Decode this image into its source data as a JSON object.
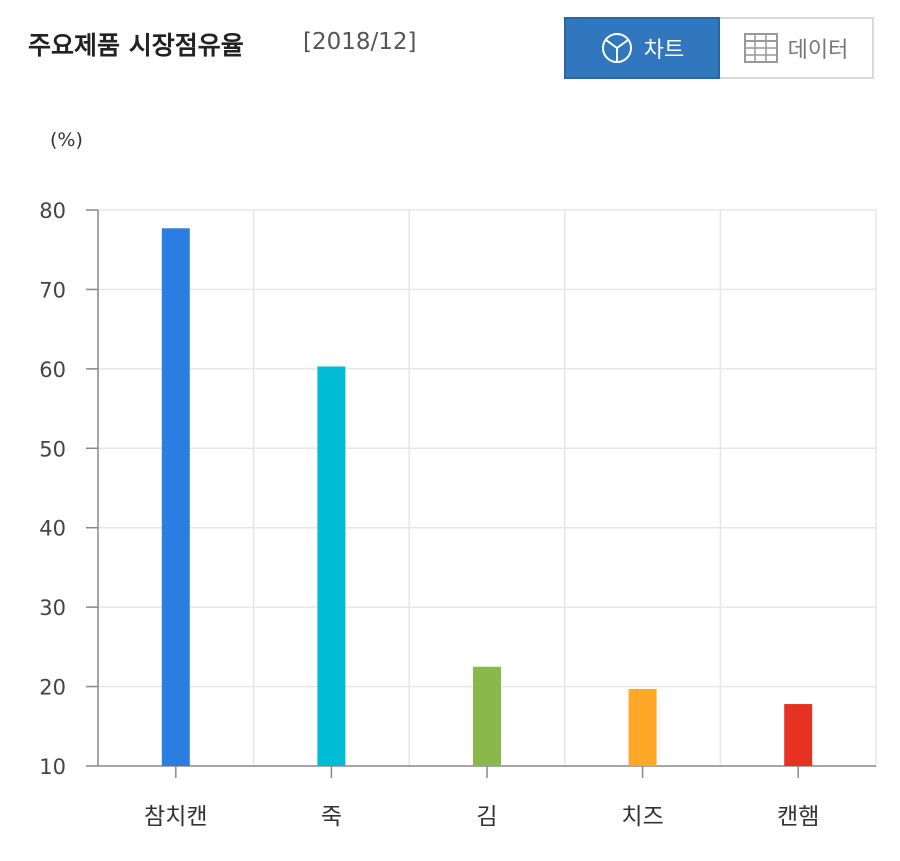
{
  "header": {
    "title": "주요제품 시장점유율",
    "period": "[2018/12]"
  },
  "toggle": {
    "chart_label": "차트",
    "data_label": "데이터",
    "chart_icon": "pie-chart-icon",
    "data_icon": "table-grid-icon",
    "active_color": "#3177bd"
  },
  "chart_data": {
    "type": "bar",
    "unit_label": "(%)",
    "categories": [
      "참치캔",
      "죽",
      "김",
      "치즈",
      "캔햄"
    ],
    "values": [
      77.7,
      60.3,
      22.5,
      19.7,
      17.8
    ],
    "colors": [
      "#2a7de1",
      "#00bcd4",
      "#8ab84a",
      "#ffa726",
      "#e53222"
    ],
    "ylim": [
      10,
      80
    ],
    "yticks": [
      10,
      20,
      30,
      40,
      50,
      60,
      70,
      80
    ],
    "grid": true
  }
}
